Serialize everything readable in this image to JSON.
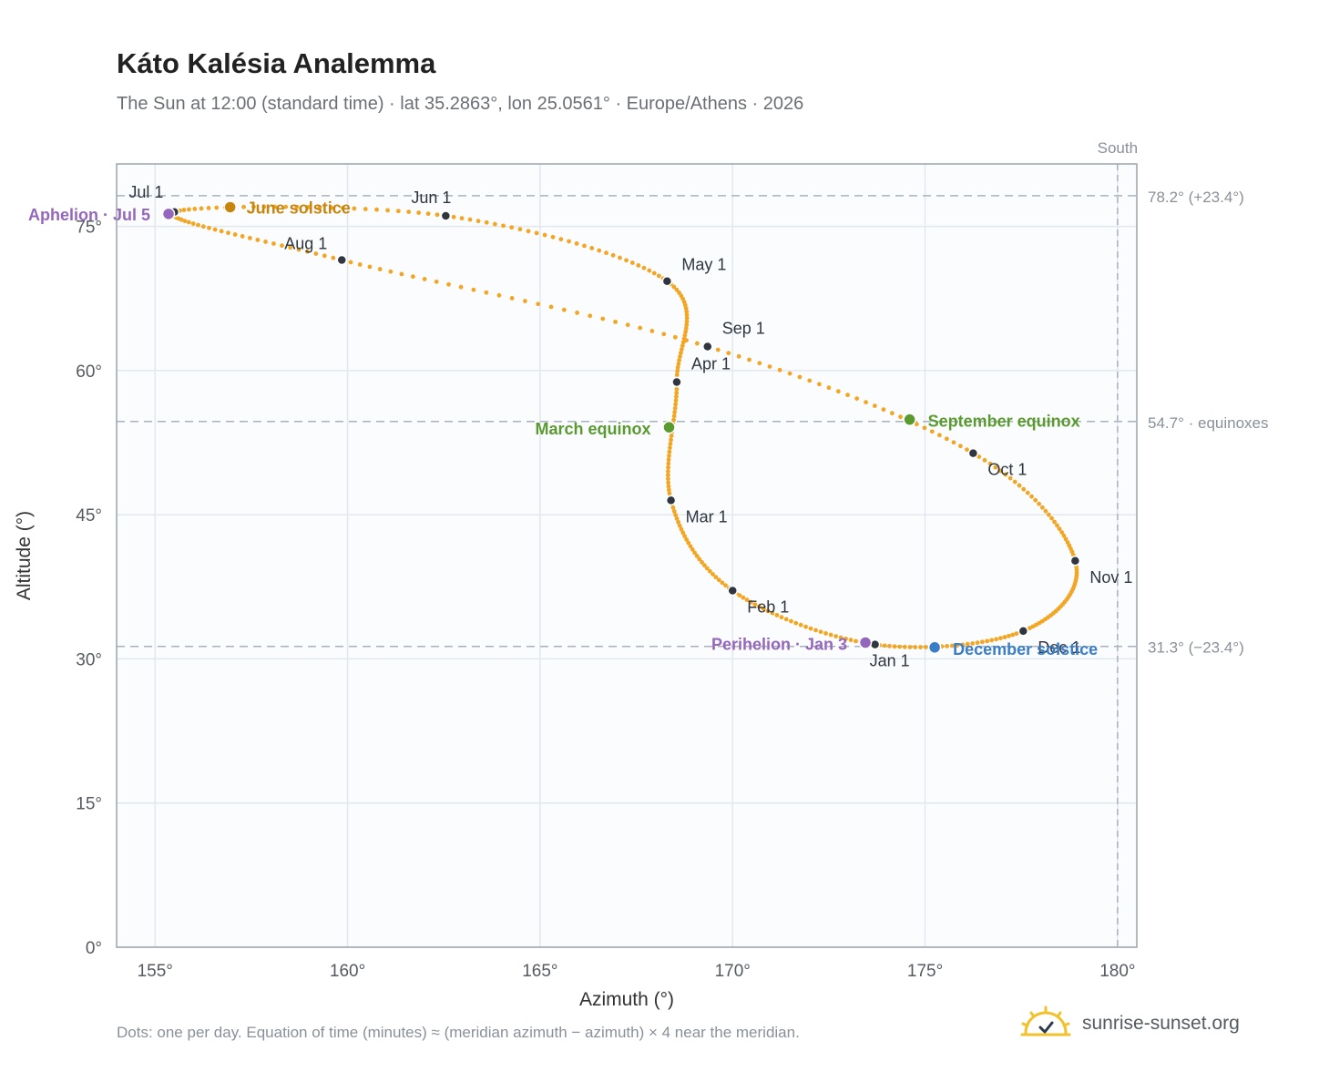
{
  "page": {
    "title": "Káto Kalésia Analemma",
    "subtitle": "The Sun at 12:00 (standard time) · lat 35.2863°, lon 25.0561° · Europe/Athens · 2026",
    "footnote": "Dots: one per day. Equation of time (minutes) ≈ (meridian azimuth − azimuth) × 4 near the meridian.",
    "brand": "sunrise-sunset.org",
    "brand_icon": "sun-check-icon"
  },
  "chart_data": {
    "type": "scatter",
    "xlabel": "Azimuth (°)",
    "ylabel": "Altitude (°)",
    "xlim": [
      154,
      180.5
    ],
    "ylim": [
      0,
      81.5
    ],
    "xticks": [
      155,
      160,
      165,
      170,
      175,
      180
    ],
    "yticks": [
      0,
      15,
      30,
      45,
      60,
      75
    ],
    "tick_suffix": "°",
    "grid": true,
    "meridian": {
      "azimuth": 180,
      "label": "South"
    },
    "reference_lines": [
      {
        "altitude": 78.2,
        "label": "78.2° (+23.4°)"
      },
      {
        "altitude": 54.7,
        "label": "54.7° · equinoxes"
      },
      {
        "altitude": 31.3,
        "label": "31.3° (−23.4°)"
      }
    ],
    "path_color": "#f2a623",
    "month_points": [
      {
        "label": "Jan 1",
        "az": 173.7,
        "alt": 31.5
      },
      {
        "label": "Feb 1",
        "az": 170.0,
        "alt": 37.1
      },
      {
        "label": "Mar 1",
        "az": 168.4,
        "alt": 46.5
      },
      {
        "label": "Apr 1",
        "az": 168.55,
        "alt": 58.8
      },
      {
        "label": "May 1",
        "az": 168.3,
        "alt": 69.3
      },
      {
        "label": "Jun 1",
        "az": 162.55,
        "alt": 76.1
      },
      {
        "label": "Jul 1",
        "az": 155.5,
        "alt": 76.5
      },
      {
        "label": "Aug 1",
        "az": 159.85,
        "alt": 71.5
      },
      {
        "label": "Sep 1",
        "az": 169.35,
        "alt": 62.5
      },
      {
        "label": "Oct 1",
        "az": 176.25,
        "alt": 51.4
      },
      {
        "label": "Nov 1",
        "az": 178.9,
        "alt": 40.2
      },
      {
        "label": "Dec 1",
        "az": 177.55,
        "alt": 32.9
      }
    ],
    "events": [
      {
        "label": "June solstice",
        "az": 156.95,
        "alt": 77.0,
        "color": "#c8850e"
      },
      {
        "label": "Aphelion · Jul 5",
        "az": 155.35,
        "alt": 76.3,
        "color": "#9467bd"
      },
      {
        "label": "March equinox",
        "az": 168.35,
        "alt": 54.1,
        "color": "#5a9a2f"
      },
      {
        "label": "September equinox",
        "az": 174.6,
        "alt": 54.9,
        "color": "#5a9a2f"
      },
      {
        "label": "Perihelion · Jan 3",
        "az": 173.45,
        "alt": 31.7,
        "color": "#9467bd"
      },
      {
        "label": "December solstice",
        "az": 175.25,
        "alt": 31.2,
        "color": "#3a7dc9"
      }
    ]
  }
}
